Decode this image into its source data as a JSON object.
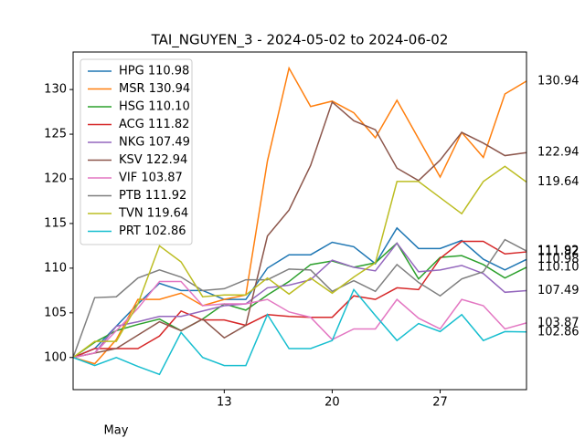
{
  "chart_data": {
    "type": "line",
    "title": "TAI_NGUYEN_3 - 2024-05-02 to 2024-06-02",
    "categories": [
      null,
      null,
      null,
      null,
      null,
      null,
      null,
      "13",
      null,
      null,
      null,
      null,
      "20",
      null,
      null,
      null,
      null,
      "27",
      null,
      null,
      null,
      null
    ],
    "x_sublabel": "May",
    "ylim": [
      96.4,
      134.2
    ],
    "yticks": [
      100,
      105,
      110,
      115,
      120,
      125,
      130
    ],
    "legend": "upper left",
    "series": [
      {
        "name": "HPG 110.98",
        "color": "#1f77b4",
        "values": [
          100,
          101,
          103.5,
          106,
          108.3,
          107.5,
          107.5,
          106.5,
          106.5,
          110,
          111.5,
          111.5,
          112.9,
          112.4,
          110.5,
          114.5,
          112.2,
          112.2,
          113.1,
          111,
          109.8,
          110.98
        ]
      },
      {
        "name": "MSR 130.94",
        "color": "#ff7f0e",
        "values": [
          100,
          99.3,
          102,
          106.5,
          106.5,
          107.2,
          105.8,
          106.5,
          107,
          122,
          132.4,
          128.1,
          128.7,
          127.4,
          124.6,
          128.8,
          124.5,
          120.2,
          125.2,
          122.4,
          129.5,
          130.94
        ]
      },
      {
        "name": "HSG 110.10",
        "color": "#2ca02c",
        "values": [
          100,
          101.7,
          103,
          103.7,
          104.3,
          103,
          104.3,
          106,
          105.3,
          107,
          108.5,
          110.4,
          110.8,
          110.1,
          110.6,
          112.8,
          108.8,
          111.2,
          111.4,
          110.4,
          108.9,
          110.1
        ],
        "value_labels": {
          "21": "110.10"
        }
      },
      {
        "name": "ACG 111.82",
        "color": "#d62728",
        "values": [
          100,
          101,
          101,
          101,
          102.4,
          105.2,
          104.2,
          104.2,
          103.6,
          104.8,
          104.6,
          104.5,
          104.5,
          106.9,
          106.5,
          107.8,
          107.6,
          111.1,
          113,
          113,
          111.6,
          111.82
        ]
      },
      {
        "name": "NKG 107.49",
        "color": "#9467bd",
        "values": [
          100,
          100.5,
          103.5,
          104,
          104.6,
          104.6,
          105.2,
          105.8,
          106,
          107.8,
          108.1,
          108.7,
          110.9,
          110.1,
          109.7,
          112.8,
          109.6,
          109.8,
          110.3,
          109.4,
          107.3,
          107.49
        ]
      },
      {
        "name": "KSV 122.94",
        "color": "#8c564b",
        "values": [
          100,
          100.5,
          101,
          102.5,
          104,
          103,
          104.3,
          102.2,
          103.6,
          113.6,
          116.5,
          121.5,
          128.6,
          126.5,
          125.5,
          121.2,
          119.8,
          122.1,
          125.2,
          124,
          122.6,
          122.94
        ]
      },
      {
        "name": "VIF 103.87",
        "color": "#e377c2",
        "values": [
          100,
          100.5,
          103,
          105.5,
          108.5,
          108.5,
          105.8,
          106,
          106,
          106.5,
          105.1,
          104.5,
          102,
          103.2,
          103.2,
          106.5,
          104.4,
          103.2,
          106.5,
          105.8,
          103.2,
          103.87
        ]
      },
      {
        "name": "PTB 111.92",
        "color": "#7f7f7f",
        "values": [
          100,
          106.7,
          106.8,
          108.9,
          109.8,
          109,
          107.5,
          107.7,
          108.7,
          108.7,
          109.9,
          109.8,
          107.4,
          108.6,
          107.4,
          110.4,
          108.4,
          106.9,
          108.8,
          109.6,
          113.2,
          111.92
        ]
      },
      {
        "name": "TVN 119.64",
        "color": "#bcbd22",
        "values": [
          100,
          101.8,
          101.8,
          106,
          112.5,
          110.7,
          106.8,
          107,
          107,
          108.9,
          107.1,
          108.9,
          107.2,
          109,
          110.6,
          119.7,
          119.7,
          117.9,
          116.1,
          119.7,
          121.4,
          119.64
        ]
      },
      {
        "name": "PRT 102.86",
        "color": "#17becf",
        "values": [
          100,
          99.1,
          100,
          99,
          98.1,
          102.8,
          100,
          99.1,
          99.1,
          104.8,
          101,
          101,
          101.9,
          107.6,
          104.7,
          101.9,
          103.8,
          102.9,
          104.8,
          101.9,
          102.9,
          102.86
        ]
      }
    ]
  }
}
